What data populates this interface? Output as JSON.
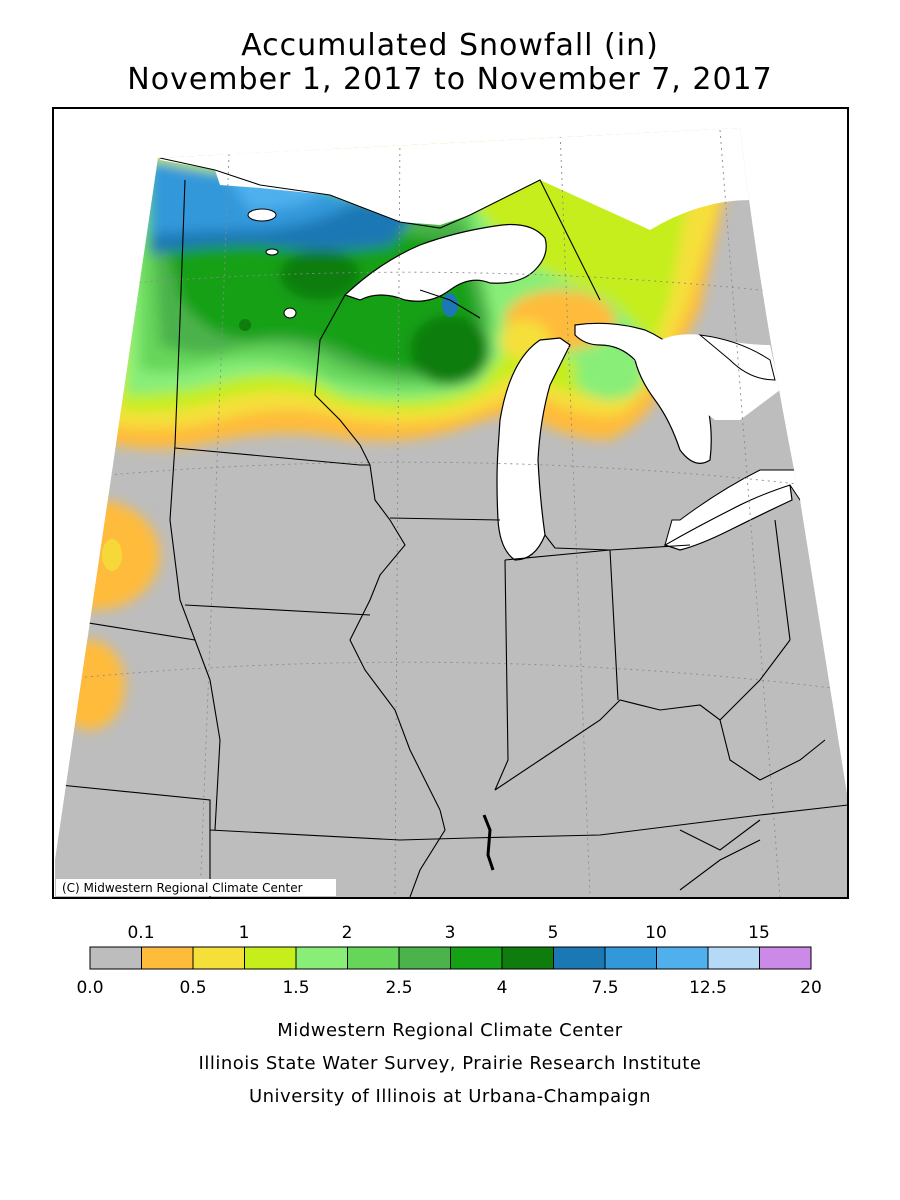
{
  "title": "Accumulated Snowfall (in)",
  "subtitle": "November 1, 2017 to November 7, 2017",
  "copyright": "(C) Midwestern Regional Climate Center",
  "legend": {
    "top_labels": [
      "0.1",
      "1",
      "2",
      "3",
      "5",
      "10",
      "15"
    ],
    "bottom_labels": [
      "0.0",
      "0.5",
      "1.5",
      "2.5",
      "4",
      "7.5",
      "12.5",
      "20"
    ],
    "colors": [
      "#bdbdbd",
      "#ffbb3a",
      "#f5e03a",
      "#c5ee1a",
      "#88ee78",
      "#66d65a",
      "#4cb24c",
      "#16a016",
      "#0e7d0e",
      "#1c78b4",
      "#3298da",
      "#50b0ee",
      "#b4daf8",
      "#cc8ae8"
    ]
  },
  "credits": [
    "Midwestern Regional Climate Center",
    "Illinois State Water Survey, Prairie Research Institute",
    "University of Illinois at Urbana-Champaign"
  ]
}
